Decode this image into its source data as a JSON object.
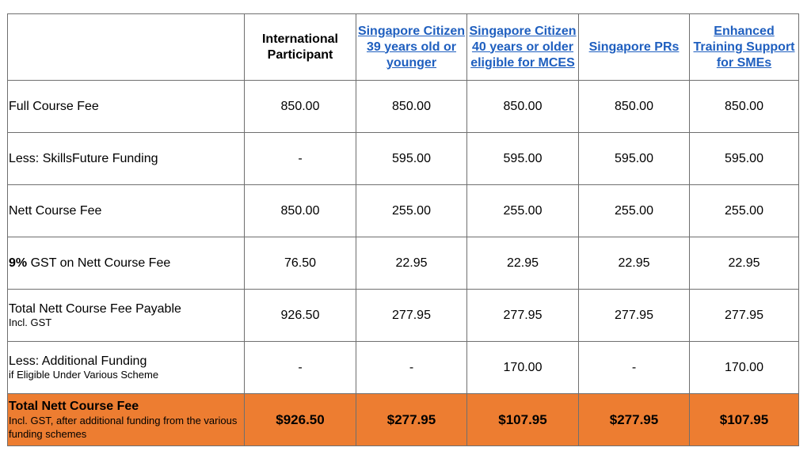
{
  "header": {
    "col1": "International Participant",
    "col2": "Singapore Citizen 39 years old or younger",
    "col3": "Singapore Citizen 40 years or older eligible for MCES",
    "col4": "Singapore PRs",
    "col5": "Enhanced Training Support for SMEs"
  },
  "rows": [
    {
      "label": "Full Course Fee",
      "values": [
        "850.00",
        "850.00",
        "850.00",
        "850.00",
        "850.00"
      ]
    },
    {
      "label": "Less: SkillsFuture Funding",
      "values": [
        "-",
        "595.00",
        "595.00",
        "595.00",
        "595.00"
      ]
    },
    {
      "label": "Nett Course Fee",
      "values": [
        "850.00",
        "255.00",
        "255.00",
        "255.00",
        "255.00"
      ]
    },
    {
      "label_bold": "9%",
      "label": " GST on Nett Course Fee",
      "values": [
        "76.50",
        "22.95",
        "22.95",
        "22.95",
        "22.95"
      ]
    },
    {
      "label": "Total Nett Course Fee Payable",
      "sublabel": "Incl. GST",
      "values": [
        "926.50",
        "277.95",
        "277.95",
        "277.95",
        "277.95"
      ]
    },
    {
      "label": "Less: Additional Funding",
      "sublabel": "if Eligible Under Various Scheme",
      "values": [
        "-",
        "-",
        "170.00",
        "-",
        "170.00"
      ]
    }
  ],
  "total": {
    "label": "Total Nett Course Fee",
    "sublabel": "Incl. GST, after additional funding from the various funding schemes",
    "values": [
      "$926.50",
      "$277.95",
      "$107.95",
      "$277.95",
      "$107.95"
    ]
  },
  "colors": {
    "total_row_bg": "#ed7d31",
    "link": "#1f5fbf",
    "border": "#6f6f6f"
  }
}
